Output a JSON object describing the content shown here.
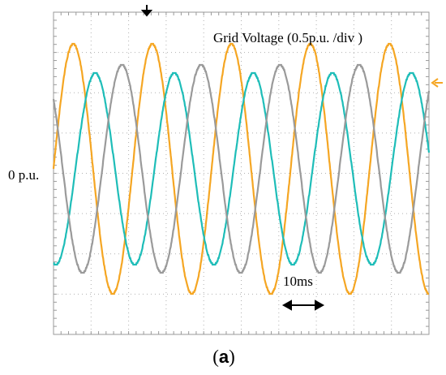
{
  "chart_data": {
    "type": "line",
    "title": "Grid Voltage (0.5p.u. /div )",
    "y_reference_label": "0 p.u.",
    "time_scale_label": "10ms",
    "panel_label": "(a)",
    "panel_letter": "a",
    "grid": true,
    "divisions": {
      "x": 10,
      "y": 8
    },
    "units": {
      "x": "ms",
      "y": "p.u."
    },
    "xlim": [
      0,
      95
    ],
    "ylim": [
      -2,
      2
    ],
    "frequency_hz": 50,
    "series": [
      {
        "color": "#F5A623",
        "amplitude": 1.55,
        "phase_deg": 0
      },
      {
        "color": "#1EBDB8",
        "amplitude": 1.19,
        "phase_deg": -100
      },
      {
        "color": "#9A9A9A",
        "amplitude": 1.29,
        "phase_deg": 138
      }
    ]
  }
}
